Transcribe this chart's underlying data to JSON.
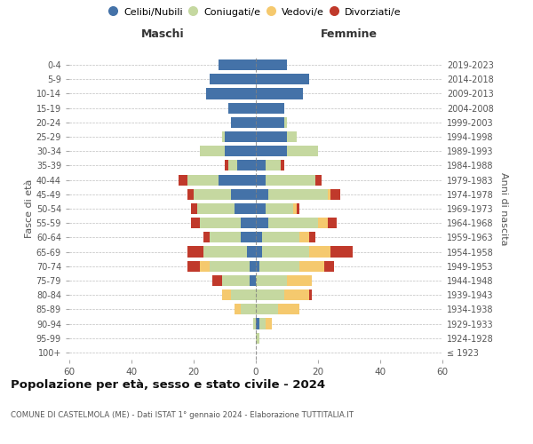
{
  "age_groups": [
    "100+",
    "95-99",
    "90-94",
    "85-89",
    "80-84",
    "75-79",
    "70-74",
    "65-69",
    "60-64",
    "55-59",
    "50-54",
    "45-49",
    "40-44",
    "35-39",
    "30-34",
    "25-29",
    "20-24",
    "15-19",
    "10-14",
    "5-9",
    "0-4"
  ],
  "birth_years": [
    "≤ 1923",
    "1924-1928",
    "1929-1933",
    "1934-1938",
    "1939-1943",
    "1944-1948",
    "1949-1953",
    "1954-1958",
    "1959-1963",
    "1964-1968",
    "1969-1973",
    "1974-1978",
    "1979-1983",
    "1984-1988",
    "1989-1993",
    "1994-1998",
    "1999-2003",
    "2004-2008",
    "2009-2013",
    "2014-2018",
    "2019-2023"
  ],
  "maschi": {
    "celibi": [
      0,
      0,
      0,
      0,
      0,
      2,
      2,
      3,
      5,
      5,
      7,
      8,
      12,
      6,
      10,
      10,
      8,
      9,
      16,
      15,
      12
    ],
    "coniugati": [
      0,
      0,
      1,
      5,
      8,
      9,
      13,
      14,
      10,
      13,
      12,
      12,
      10,
      3,
      8,
      1,
      0,
      0,
      0,
      0,
      0
    ],
    "vedovi": [
      0,
      0,
      0,
      2,
      3,
      0,
      3,
      0,
      0,
      0,
      0,
      0,
      0,
      0,
      0,
      0,
      0,
      0,
      0,
      0,
      0
    ],
    "divorziati": [
      0,
      0,
      0,
      0,
      0,
      3,
      4,
      5,
      2,
      3,
      2,
      2,
      3,
      1,
      0,
      0,
      0,
      0,
      0,
      0,
      0
    ]
  },
  "femmine": {
    "nubili": [
      0,
      0,
      1,
      0,
      0,
      0,
      1,
      2,
      2,
      4,
      3,
      4,
      3,
      3,
      10,
      10,
      9,
      9,
      15,
      17,
      10
    ],
    "coniugate": [
      0,
      1,
      2,
      7,
      9,
      10,
      13,
      15,
      12,
      16,
      9,
      19,
      16,
      5,
      10,
      3,
      1,
      0,
      0,
      0,
      0
    ],
    "vedove": [
      0,
      0,
      2,
      7,
      8,
      8,
      8,
      7,
      3,
      3,
      1,
      1,
      0,
      0,
      0,
      0,
      0,
      0,
      0,
      0,
      0
    ],
    "divorziate": [
      0,
      0,
      0,
      0,
      1,
      0,
      3,
      7,
      2,
      3,
      1,
      3,
      2,
      1,
      0,
      0,
      0,
      0,
      0,
      0,
      0
    ]
  },
  "colors": {
    "celibi": "#4472a8",
    "coniugati": "#c5d8a0",
    "vedovi": "#f5c96e",
    "divorziati": "#c0392b"
  },
  "xlim": 60,
  "title": "Popolazione per età, sesso e stato civile - 2024",
  "subtitle": "COMUNE DI CASTELMOLA (ME) - Dati ISTAT 1° gennaio 2024 - Elaborazione TUTTITALIA.IT",
  "ylabel": "Fasce di età",
  "right_ylabel": "Anni di nascita",
  "legend_labels": [
    "Celibi/Nubili",
    "Coniugati/e",
    "Vedovi/e",
    "Divorziati/e"
  ],
  "maschi_label": "Maschi",
  "femmine_label": "Femmine"
}
